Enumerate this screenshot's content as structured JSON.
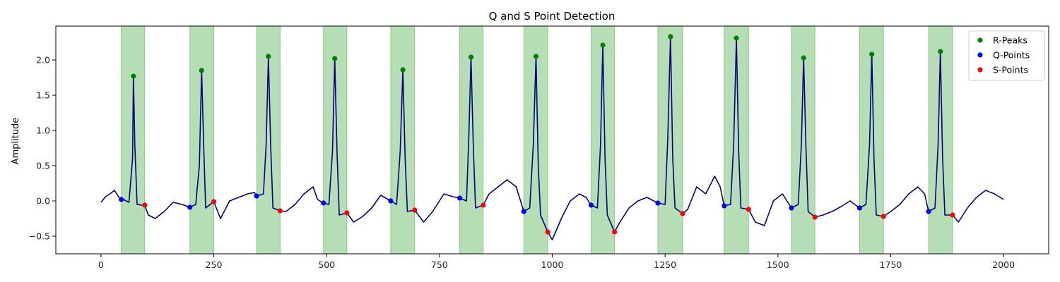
{
  "chart_data": {
    "type": "line",
    "title": "Q and S Point Detection",
    "xlabel": "",
    "ylabel": "Amplitude",
    "xlim": [
      -100,
      2100
    ],
    "ylim": [
      -0.75,
      2.48
    ],
    "xticks": [
      0,
      250,
      500,
      750,
      1000,
      1250,
      1500,
      1750,
      2000
    ],
    "yticks": [
      -0.5,
      0.0,
      0.5,
      1.0,
      1.5,
      2.0
    ],
    "ytick_labels": [
      "−0.5",
      "0.0",
      "0.5",
      "1.0",
      "1.5",
      "2.0"
    ],
    "grid": false,
    "legend_position": "top-right",
    "colors": {
      "signal": "#00008b",
      "r_peaks": "#008000",
      "q_points": "#0000ff",
      "s_points": "#ff0000",
      "qrs_band": "#2ca02c"
    },
    "legend": [
      "R-Peaks",
      "Q-Points",
      "S-Points"
    ],
    "beats": [
      {
        "r": [
          72,
          1.77
        ],
        "q": [
          45,
          0.02
        ],
        "s": [
          97,
          -0.06
        ],
        "band": [
          45,
          97
        ]
      },
      {
        "r": [
          223,
          1.85
        ],
        "q": [
          197,
          -0.09
        ],
        "s": [
          250,
          -0.01
        ],
        "band": [
          197,
          250
        ]
      },
      {
        "r": [
          371,
          2.05
        ],
        "q": [
          345,
          0.07
        ],
        "s": [
          397,
          -0.14
        ],
        "band": [
          345,
          397
        ]
      },
      {
        "r": [
          518,
          2.02
        ],
        "q": [
          493,
          -0.03
        ],
        "s": [
          545,
          -0.17
        ],
        "band": [
          493,
          545
        ]
      },
      {
        "r": [
          669,
          1.86
        ],
        "q": [
          642,
          0.0
        ],
        "s": [
          695,
          -0.13
        ],
        "band": [
          642,
          695
        ]
      },
      {
        "r": [
          820,
          2.04
        ],
        "q": [
          795,
          0.04
        ],
        "s": [
          847,
          -0.06
        ],
        "band": [
          795,
          847
        ]
      },
      {
        "r": [
          964,
          2.05
        ],
        "q": [
          937,
          -0.15
        ],
        "s": [
          990,
          -0.44
        ],
        "band": [
          937,
          990
        ]
      },
      {
        "r": [
          1112,
          2.21
        ],
        "q": [
          1086,
          -0.06
        ],
        "s": [
          1138,
          -0.44
        ],
        "band": [
          1086,
          1138
        ]
      },
      {
        "r": [
          1262,
          2.33
        ],
        "q": [
          1234,
          -0.03
        ],
        "s": [
          1289,
          -0.18
        ],
        "band": [
          1234,
          1289
        ]
      },
      {
        "r": [
          1408,
          2.31
        ],
        "q": [
          1381,
          -0.07
        ],
        "s": [
          1435,
          -0.12
        ],
        "band": [
          1381,
          1435
        ]
      },
      {
        "r": [
          1557,
          2.03
        ],
        "q": [
          1530,
          -0.1
        ],
        "s": [
          1582,
          -0.23
        ],
        "band": [
          1530,
          1582
        ]
      },
      {
        "r": [
          1708,
          2.08
        ],
        "q": [
          1681,
          -0.1
        ],
        "s": [
          1734,
          -0.22
        ],
        "band": [
          1681,
          1734
        ]
      },
      {
        "r": [
          1860,
          2.12
        ],
        "q": [
          1834,
          -0.15
        ],
        "s": [
          1887,
          -0.2
        ],
        "band": [
          1834,
          1887
        ]
      }
    ],
    "baseline": [
      [
        0,
        -0.02
      ],
      [
        10,
        0.06
      ],
      [
        20,
        0.1
      ],
      [
        30,
        0.15
      ],
      [
        40,
        0.05
      ],
      [
        50,
        0.02
      ],
      [
        62,
        -0.02
      ],
      [
        70,
        0.6
      ],
      [
        72,
        1.77
      ],
      [
        75,
        0.8
      ],
      [
        80,
        -0.05
      ],
      [
        90,
        -0.06
      ],
      [
        97,
        -0.06
      ],
      [
        105,
        -0.2
      ],
      [
        120,
        -0.25
      ],
      [
        140,
        -0.15
      ],
      [
        160,
        -0.02
      ],
      [
        180,
        -0.05
      ],
      [
        197,
        -0.09
      ],
      [
        210,
        -0.05
      ],
      [
        218,
        0.5
      ],
      [
        223,
        1.85
      ],
      [
        228,
        0.7
      ],
      [
        232,
        -0.1
      ],
      [
        250,
        -0.01
      ],
      [
        265,
        -0.25
      ],
      [
        285,
        0.0
      ],
      [
        305,
        0.05
      ],
      [
        325,
        0.1
      ],
      [
        340,
        0.12
      ],
      [
        345,
        0.07
      ],
      [
        360,
        0.1
      ],
      [
        366,
        0.8
      ],
      [
        371,
        2.05
      ],
      [
        376,
        0.8
      ],
      [
        381,
        -0.1
      ],
      [
        397,
        -0.14
      ],
      [
        410,
        -0.15
      ],
      [
        430,
        -0.05
      ],
      [
        450,
        0.1
      ],
      [
        470,
        0.2
      ],
      [
        480,
        0.02
      ],
      [
        493,
        -0.03
      ],
      [
        505,
        -0.05
      ],
      [
        513,
        0.7
      ],
      [
        518,
        2.02
      ],
      [
        523,
        0.7
      ],
      [
        528,
        -0.2
      ],
      [
        545,
        -0.17
      ],
      [
        560,
        -0.3
      ],
      [
        580,
        -0.22
      ],
      [
        600,
        -0.1
      ],
      [
        620,
        0.08
      ],
      [
        642,
        0.0
      ],
      [
        655,
        -0.05
      ],
      [
        663,
        0.7
      ],
      [
        669,
        1.86
      ],
      [
        674,
        0.6
      ],
      [
        679,
        -0.15
      ],
      [
        695,
        -0.13
      ],
      [
        715,
        -0.3
      ],
      [
        735,
        -0.15
      ],
      [
        760,
        0.1
      ],
      [
        780,
        0.06
      ],
      [
        795,
        0.04
      ],
      [
        810,
        0.0
      ],
      [
        815,
        0.9
      ],
      [
        820,
        2.04
      ],
      [
        825,
        0.8
      ],
      [
        830,
        -0.1
      ],
      [
        847,
        -0.06
      ],
      [
        860,
        0.1
      ],
      [
        880,
        0.2
      ],
      [
        900,
        0.3
      ],
      [
        920,
        0.2
      ],
      [
        937,
        -0.15
      ],
      [
        950,
        -0.1
      ],
      [
        958,
        0.8
      ],
      [
        964,
        2.05
      ],
      [
        969,
        0.5
      ],
      [
        974,
        -0.2
      ],
      [
        990,
        -0.44
      ],
      [
        1000,
        -0.55
      ],
      [
        1020,
        -0.25
      ],
      [
        1040,
        0.0
      ],
      [
        1060,
        0.1
      ],
      [
        1075,
        0.05
      ],
      [
        1086,
        -0.06
      ],
      [
        1100,
        -0.1
      ],
      [
        1107,
        0.8
      ],
      [
        1112,
        2.21
      ],
      [
        1117,
        0.6
      ],
      [
        1122,
        -0.2
      ],
      [
        1138,
        -0.44
      ],
      [
        1150,
        -0.3
      ],
      [
        1170,
        -0.1
      ],
      [
        1190,
        0.0
      ],
      [
        1210,
        0.05
      ],
      [
        1234,
        -0.03
      ],
      [
        1250,
        -0.05
      ],
      [
        1256,
        0.9
      ],
      [
        1262,
        2.33
      ],
      [
        1267,
        0.6
      ],
      [
        1272,
        -0.1
      ],
      [
        1289,
        -0.18
      ],
      [
        1300,
        -0.12
      ],
      [
        1320,
        0.2
      ],
      [
        1340,
        0.1
      ],
      [
        1360,
        0.35
      ],
      [
        1372,
        0.2
      ],
      [
        1381,
        -0.07
      ],
      [
        1395,
        -0.05
      ],
      [
        1402,
        0.8
      ],
      [
        1408,
        2.31
      ],
      [
        1413,
        0.7
      ],
      [
        1418,
        -0.1
      ],
      [
        1435,
        -0.12
      ],
      [
        1450,
        -0.3
      ],
      [
        1470,
        -0.35
      ],
      [
        1490,
        0.0
      ],
      [
        1510,
        0.1
      ],
      [
        1530,
        -0.1
      ],
      [
        1545,
        -0.05
      ],
      [
        1552,
        0.8
      ],
      [
        1557,
        2.03
      ],
      [
        1562,
        0.8
      ],
      [
        1567,
        -0.15
      ],
      [
        1582,
        -0.23
      ],
      [
        1600,
        -0.2
      ],
      [
        1620,
        -0.15
      ],
      [
        1640,
        -0.08
      ],
      [
        1660,
        0.0
      ],
      [
        1681,
        -0.1
      ],
      [
        1695,
        -0.05
      ],
      [
        1703,
        0.8
      ],
      [
        1708,
        2.08
      ],
      [
        1713,
        0.6
      ],
      [
        1718,
        -0.2
      ],
      [
        1734,
        -0.22
      ],
      [
        1750,
        -0.15
      ],
      [
        1770,
        -0.05
      ],
      [
        1790,
        0.1
      ],
      [
        1810,
        0.2
      ],
      [
        1825,
        0.1
      ],
      [
        1834,
        -0.15
      ],
      [
        1848,
        -0.1
      ],
      [
        1855,
        0.8
      ],
      [
        1860,
        2.12
      ],
      [
        1865,
        0.6
      ],
      [
        1870,
        -0.2
      ],
      [
        1887,
        -0.2
      ],
      [
        1900,
        -0.3
      ],
      [
        1920,
        -0.1
      ],
      [
        1940,
        0.05
      ],
      [
        1960,
        0.15
      ],
      [
        1980,
        0.1
      ],
      [
        2000,
        0.02
      ]
    ]
  }
}
